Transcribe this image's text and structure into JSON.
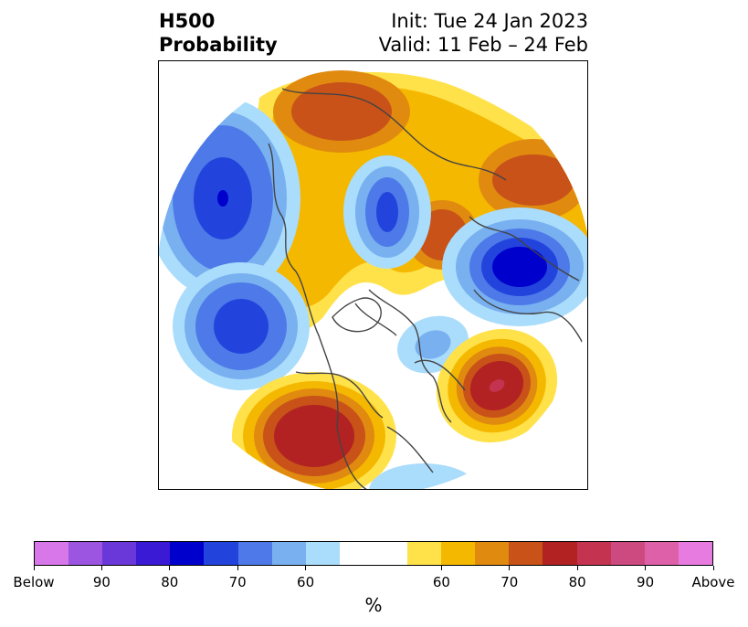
{
  "title": {
    "left_line1": "H500",
    "left_line2": "Probability",
    "right_line1": "Init: Tue 24 Jan 2023",
    "right_line2": "Valid: 11 Feb – 24 Feb"
  },
  "colorbar": {
    "colors": [
      "#d877ea",
      "#9b55e0",
      "#6a38d8",
      "#3a1ad4",
      "#0000cc",
      "#2244dd",
      "#4d7ae8",
      "#78b0f0",
      "#aadcfc",
      "#ffffff",
      "#ffffff",
      "#ffe24a",
      "#f5b800",
      "#e08a10",
      "#c85218",
      "#b22222",
      "#c43350",
      "#cc4a80",
      "#dd60a8",
      "#e77be0"
    ],
    "tick_labels": [
      "Below",
      "90",
      "80",
      "70",
      "60",
      "60",
      "70",
      "80",
      "90",
      "Above"
    ],
    "unit": "%"
  },
  "map": {
    "projection": "polar-stereographic",
    "colors": {
      "blue_light": "#aadcfc",
      "blue_mid": "#78b0f0",
      "blue": "#4d7ae8",
      "blue_strong": "#2244dd",
      "blue_deep": "#0000cc",
      "yellow": "#ffe24a",
      "gold": "#f5b800",
      "orange": "#e08a10",
      "rust": "#c85218",
      "red": "#b22222",
      "pink": "#c43350",
      "coast": "#444444"
    }
  }
}
